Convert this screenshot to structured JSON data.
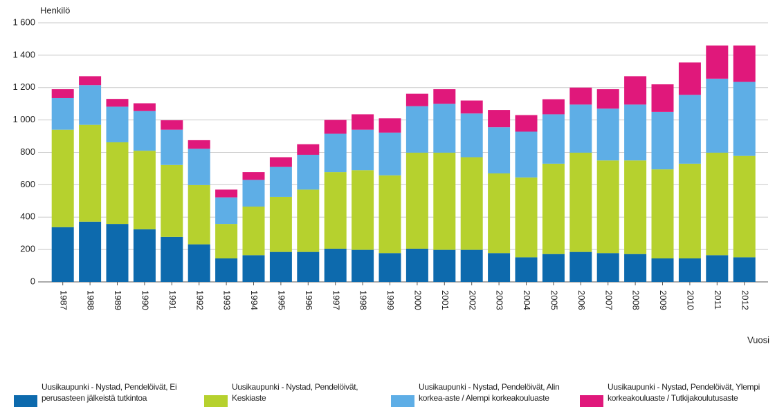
{
  "chart_data": {
    "type": "stacked_bar",
    "y_label": "Henkilö",
    "x_label": "Vuosi",
    "categories": [
      "1987",
      "1988",
      "1989",
      "1990",
      "1991",
      "1992",
      "1993",
      "1994",
      "1995",
      "1996",
      "1997",
      "1998",
      "1999",
      "2000",
      "2001",
      "2002",
      "2003",
      "2004",
      "2005",
      "2006",
      "2007",
      "2008",
      "2009",
      "2010",
      "2011",
      "2012"
    ],
    "series": [
      {
        "name": "Uusikaupunki - Nystad, Pendelöivät, Ei perusasteen jälkeistä tutkintoa",
        "color": "#0d6aad",
        "values": [
          338,
          372,
          358,
          325,
          278,
          232,
          145,
          165,
          185,
          185,
          205,
          198,
          178,
          205,
          198,
          198,
          178,
          152,
          172,
          185,
          178,
          172,
          145,
          145,
          165,
          152
        ]
      },
      {
        "name": "Uusikaupunki - Nystad, Pendelöivät, Keskiaste",
        "color": "#b6d12e",
        "values": [
          602,
          598,
          504,
          485,
          444,
          366,
          213,
          300,
          340,
          385,
          473,
          492,
          480,
          593,
          600,
          572,
          492,
          493,
          558,
          613,
          572,
          578,
          550,
          585,
          633,
          626
        ]
      },
      {
        "name": "Uusikaupunki - Nystad, Pendelöivät, Alin korkea-aste / Alempi korkeakouluaste",
        "color": "#5eaee6",
        "values": [
          195,
          245,
          220,
          245,
          218,
          224,
          164,
          165,
          185,
          215,
          237,
          250,
          264,
          287,
          302,
          270,
          285,
          283,
          305,
          297,
          320,
          345,
          355,
          425,
          457,
          457
        ]
      },
      {
        "name": "Uusikaupunki - Nystad, Pendelöivät, Ylempi korkeakouluaste / Tutkijakoulutusaste",
        "color": "#e0187b",
        "values": [
          55,
          55,
          48,
          48,
          58,
          53,
          48,
          48,
          60,
          65,
          85,
          95,
          88,
          77,
          90,
          80,
          107,
          102,
          93,
          105,
          120,
          175,
          170,
          200,
          205,
          225
        ]
      }
    ],
    "ylim": [
      0,
      1600
    ],
    "yticks": [
      0,
      200,
      400,
      600,
      800,
      {
        "value": 1000,
        "label": "1 000"
      },
      {
        "value": 1200,
        "label": "1 200"
      },
      {
        "value": 1400,
        "label": "1 400"
      },
      {
        "value": 1600,
        "label": "1 600"
      }
    ],
    "grid": true
  }
}
